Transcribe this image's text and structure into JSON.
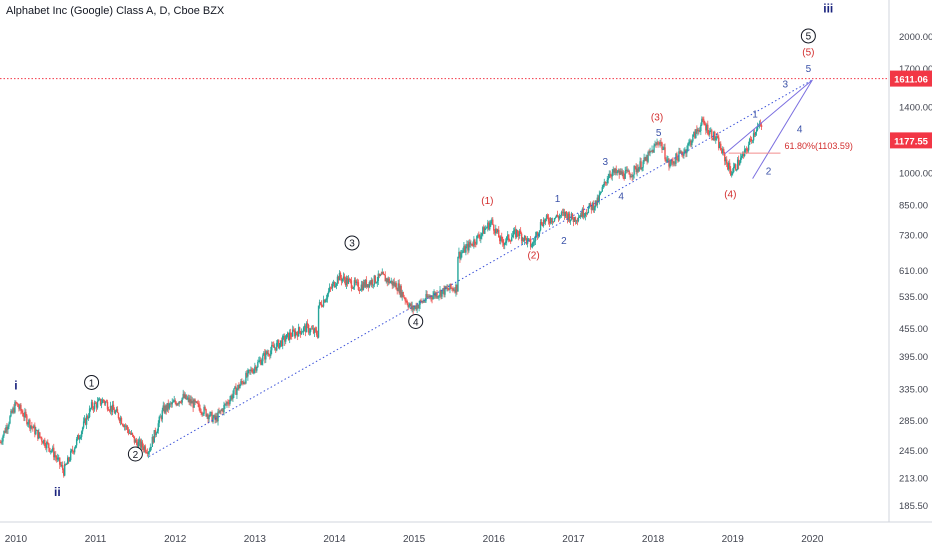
{
  "chart_data": {
    "type": "candlestick",
    "title": "Alphabet Inc (Google) Class A, D, Cboe BZX",
    "scale": "log",
    "ylim": [
      170,
      2400
    ],
    "xlim": [
      2009.8,
      2020.95
    ],
    "x_ticks": [
      "2010",
      "2011",
      "2012",
      "2013",
      "2014",
      "2015",
      "2016",
      "2017",
      "2018",
      "2019",
      "2020"
    ],
    "y_ticks": [
      "2000.00",
      "1700.00",
      "1400.00",
      "1000.00",
      "850.00",
      "730.00",
      "610.00",
      "535.00",
      "455.00",
      "395.00",
      "335.00",
      "285.00",
      "245.00",
      "213.00",
      "185.50"
    ],
    "price_path": [
      [
        2009.8,
        255
      ],
      [
        2010.0,
        310
      ],
      [
        2010.25,
        268
      ],
      [
        2010.45,
        245
      ],
      [
        2010.6,
        220
      ],
      [
        2010.8,
        265
      ],
      [
        2010.95,
        305
      ],
      [
        2011.1,
        315
      ],
      [
        2011.3,
        290
      ],
      [
        2011.5,
        255
      ],
      [
        2011.67,
        245
      ],
      [
        2011.85,
        300
      ],
      [
        2012.1,
        320
      ],
      [
        2012.35,
        300
      ],
      [
        2012.5,
        285
      ],
      [
        2012.75,
        330
      ],
      [
        2012.95,
        365
      ],
      [
        2013.15,
        400
      ],
      [
        2013.45,
        440
      ],
      [
        2013.65,
        455
      ],
      [
        2013.8,
        440
      ],
      [
        2013.82,
        510
      ],
      [
        2014.05,
        590
      ],
      [
        2014.3,
        560
      ],
      [
        2014.6,
        590
      ],
      [
        2014.8,
        560
      ],
      [
        2014.97,
        500
      ],
      [
        2015.2,
        535
      ],
      [
        2015.45,
        555
      ],
      [
        2015.55,
        560
      ],
      [
        2015.57,
        660
      ],
      [
        2015.8,
        720
      ],
      [
        2015.97,
        780
      ],
      [
        2016.1,
        700
      ],
      [
        2016.3,
        740
      ],
      [
        2016.48,
        690
      ],
      [
        2016.6,
        780
      ],
      [
        2016.9,
        810
      ],
      [
        2017.0,
        790
      ],
      [
        2017.3,
        860
      ],
      [
        2017.45,
        1000
      ],
      [
        2017.7,
        990
      ],
      [
        2017.9,
        1060
      ],
      [
        2018.08,
        1180
      ],
      [
        2018.2,
        1040
      ],
      [
        2018.4,
        1120
      ],
      [
        2018.62,
        1290
      ],
      [
        2018.8,
        1180
      ],
      [
        2018.98,
        1000
      ],
      [
        2019.15,
        1100
      ],
      [
        2019.3,
        1260
      ],
      [
        2019.37,
        1260
      ]
    ],
    "price_markers": [
      {
        "label": "1611.06",
        "value": 1611.06,
        "color": "#f23645"
      },
      {
        "label": "1177.55",
        "value": 1177.55,
        "color": "#f23645"
      }
    ],
    "horizontal_line": {
      "value": 1611.06,
      "color": "#f23645",
      "style": "dotted"
    },
    "lines": [
      {
        "name": "support-trendline",
        "points": [
          [
            2011.67,
            237
          ],
          [
            2020.0,
            1600
          ]
        ],
        "color": "#3b52d9",
        "style": "dotted"
      },
      {
        "name": "upper-channel-line",
        "points": [
          [
            2018.9,
            1100
          ],
          [
            2020.0,
            1600
          ]
        ],
        "color": "#7b6fe0",
        "style": "solid"
      },
      {
        "name": "lower-channel-line",
        "points": [
          [
            2019.25,
            970
          ],
          [
            2020.0,
            1600
          ]
        ],
        "color": "#7b6fe0",
        "style": "solid"
      },
      {
        "name": "fib-level-line",
        "points": [
          [
            2018.95,
            1103.59
          ],
          [
            2019.6,
            1103.59
          ]
        ],
        "color": "#f28c8c",
        "style": "solid"
      }
    ],
    "annotations": [
      {
        "text": "i",
        "x": 2010.0,
        "y": 340,
        "color": "#1a237e",
        "kind": "plain",
        "bold": true
      },
      {
        "text": "ii",
        "x": 2010.52,
        "y": 198,
        "color": "#1a237e",
        "kind": "plain",
        "bold": true
      },
      {
        "text": "1",
        "x": 2010.95,
        "y": 345,
        "color": "#131722",
        "kind": "circle"
      },
      {
        "text": "2",
        "x": 2011.5,
        "y": 240,
        "color": "#131722",
        "kind": "circle"
      },
      {
        "text": "3",
        "x": 2014.22,
        "y": 700,
        "color": "#131722",
        "kind": "circle"
      },
      {
        "text": "4",
        "x": 2015.02,
        "y": 470,
        "color": "#131722",
        "kind": "circle"
      },
      {
        "text": "5",
        "x": 2019.95,
        "y": 2000,
        "color": "#131722",
        "kind": "circle"
      },
      {
        "text": "iii",
        "x": 2020.2,
        "y": 2300,
        "color": "#1a237e",
        "kind": "plain",
        "bold": true
      },
      {
        "text": "(1)",
        "x": 2015.92,
        "y": 870,
        "color": "#d32f2f",
        "kind": "plain"
      },
      {
        "text": "(2)",
        "x": 2016.5,
        "y": 660,
        "color": "#d32f2f",
        "kind": "plain"
      },
      {
        "text": "(3)",
        "x": 2018.05,
        "y": 1330,
        "color": "#d32f2f",
        "kind": "plain"
      },
      {
        "text": "(4)",
        "x": 2018.97,
        "y": 900,
        "color": "#d32f2f",
        "kind": "plain"
      },
      {
        "text": "(5)",
        "x": 2019.95,
        "y": 1850,
        "color": "#d32f2f",
        "kind": "plain"
      },
      {
        "text": "1",
        "x": 2016.8,
        "y": 880,
        "color": "#3b52a8",
        "kind": "plain"
      },
      {
        "text": "2",
        "x": 2016.88,
        "y": 710,
        "color": "#3b52a8",
        "kind": "plain"
      },
      {
        "text": "3",
        "x": 2017.4,
        "y": 1060,
        "color": "#3b52a8",
        "kind": "plain"
      },
      {
        "text": "4",
        "x": 2017.6,
        "y": 890,
        "color": "#3b52a8",
        "kind": "plain"
      },
      {
        "text": "5",
        "x": 2018.07,
        "y": 1230,
        "color": "#3b52a8",
        "kind": "plain"
      },
      {
        "text": "1",
        "x": 2019.28,
        "y": 1350,
        "color": "#3b52a8",
        "kind": "plain"
      },
      {
        "text": "2",
        "x": 2019.45,
        "y": 1010,
        "color": "#3b52a8",
        "kind": "plain"
      },
      {
        "text": "3",
        "x": 2019.66,
        "y": 1570,
        "color": "#3b52a8",
        "kind": "plain"
      },
      {
        "text": "4",
        "x": 2019.84,
        "y": 1250,
        "color": "#3b52a8",
        "kind": "plain"
      },
      {
        "text": "5",
        "x": 2019.95,
        "y": 1700,
        "color": "#3b52a8",
        "kind": "plain"
      },
      {
        "text": "61.80%(1103.59)",
        "x": 2019.65,
        "y": 1150,
        "color": "#d32f2f",
        "kind": "plain",
        "small": true
      }
    ],
    "colors": {
      "up": "#26a69a",
      "down": "#ef5350",
      "grid": "#f0f3fa",
      "axis_text": "#434651"
    },
    "grid": false
  }
}
